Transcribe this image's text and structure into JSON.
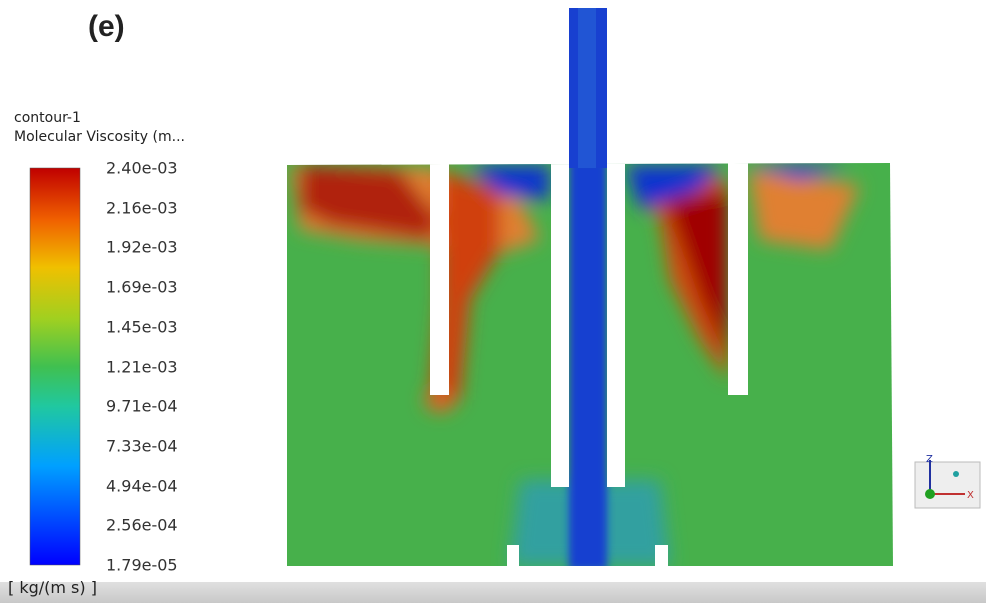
{
  "panel_label": "(e)",
  "legend": {
    "title": "contour-1",
    "variable": "Molecular Viscosity (m...",
    "ticks": [
      "2.40e-03",
      "2.16e-03",
      "1.92e-03",
      "1.69e-03",
      "1.45e-03",
      "1.21e-03",
      "9.71e-04",
      "7.33e-04",
      "4.94e-04",
      "2.56e-04",
      "1.79e-05"
    ],
    "units": "[ kg/(m s) ]"
  },
  "axes_triad": {
    "vertical": "Z",
    "horizontal": "X"
  }
}
